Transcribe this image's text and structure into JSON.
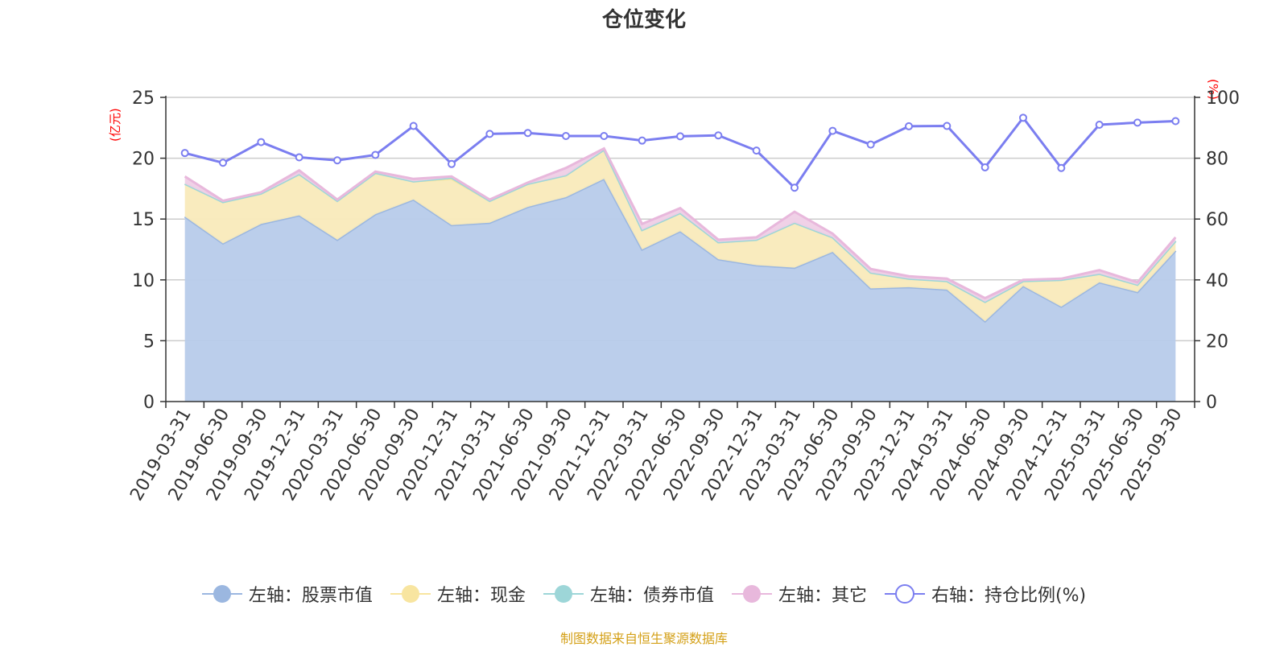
{
  "chart_data": {
    "type": "area",
    "title": "仓位变化",
    "left_axis_unit": "(亿元)",
    "right_axis_unit": "(%)",
    "ylim_left": [
      0,
      25
    ],
    "ylim_right": [
      0,
      100
    ],
    "left_ticks": [
      "0",
      "5",
      "10",
      "15",
      "20",
      "25"
    ],
    "right_ticks": [
      "0",
      "20",
      "40",
      "60",
      "80",
      "100"
    ],
    "grid": true,
    "legend_position": "bottom",
    "x": [
      "2019-03-31",
      "2019-06-30",
      "2019-09-30",
      "2019-12-31",
      "2020-03-31",
      "2020-06-30",
      "2020-09-30",
      "2020-12-31",
      "2021-03-31",
      "2021-06-30",
      "2021-09-30",
      "2021-12-31",
      "2022-03-31",
      "2022-06-30",
      "2022-09-30",
      "2022-12-31",
      "2023-03-31",
      "2023-06-30",
      "2023-09-30",
      "2023-12-31",
      "2024-03-31",
      "2024-06-30",
      "2024-09-30",
      "2024-12-31",
      "2025-03-31",
      "2025-06-30",
      "2025-09-30"
    ],
    "series": [
      {
        "name": "左轴：股票市值",
        "axis": "left",
        "kind": "stacked-area",
        "color": "#9bb7e0",
        "fill": "#b7cbea",
        "values": [
          15.2,
          13.0,
          14.6,
          15.3,
          13.3,
          15.4,
          16.6,
          14.5,
          14.7,
          16.0,
          16.8,
          18.3,
          12.5,
          14.0,
          11.7,
          11.2,
          11.0,
          12.3,
          9.3,
          9.4,
          9.2,
          6.6,
          9.5,
          7.8,
          9.8,
          9.0,
          12.4
        ]
      },
      {
        "name": "左轴：现金",
        "axis": "left",
        "kind": "stacked-area",
        "color": "#f8e5a0",
        "fill": "#f9eabb",
        "values": [
          2.7,
          3.4,
          2.5,
          3.4,
          3.2,
          3.4,
          1.5,
          3.8,
          1.8,
          1.9,
          1.8,
          2.4,
          1.6,
          1.5,
          1.4,
          2.1,
          3.7,
          1.2,
          1.3,
          0.7,
          0.7,
          1.6,
          0.4,
          2.2,
          0.7,
          0.6,
          0.8
        ]
      },
      {
        "name": "左轴：债券市值",
        "axis": "left",
        "kind": "stacked-area",
        "color": "#9dd6d8",
        "fill": "#cde9ea",
        "values": [
          0,
          0,
          0,
          0,
          0,
          0,
          0,
          0.1,
          0,
          0,
          0,
          0,
          0,
          0,
          0,
          0,
          0,
          0,
          0,
          0,
          0,
          0,
          0,
          0,
          0,
          0,
          0
        ]
      },
      {
        "name": "左轴：其它",
        "axis": "left",
        "kind": "stacked-area",
        "color": "#e8b8dc",
        "fill": "#efcfe6",
        "values": [
          0.6,
          0.1,
          0.1,
          0.3,
          0.1,
          0.1,
          0.2,
          0.1,
          0.1,
          0.1,
          0.6,
          0.1,
          0.5,
          0.4,
          0.2,
          0.2,
          0.9,
          0.3,
          0.3,
          0.2,
          0.2,
          0.3,
          0.1,
          0.1,
          0.3,
          0.2,
          0.3
        ]
      },
      {
        "name": "右轴：持仓比例(%)",
        "axis": "right",
        "kind": "line",
        "color": "#7b7ef0",
        "values": [
          81.7,
          78.5,
          85.3,
          80.3,
          79.3,
          81.1,
          90.6,
          78.1,
          88.0,
          88.3,
          87.3,
          87.3,
          85.8,
          87.2,
          87.5,
          82.5,
          70.3,
          89.0,
          84.5,
          90.5,
          90.6,
          77.0,
          93.3,
          76.8,
          91.0,
          91.7,
          92.2
        ]
      }
    ]
  },
  "source_text": "制图数据来自恒生聚源数据库"
}
